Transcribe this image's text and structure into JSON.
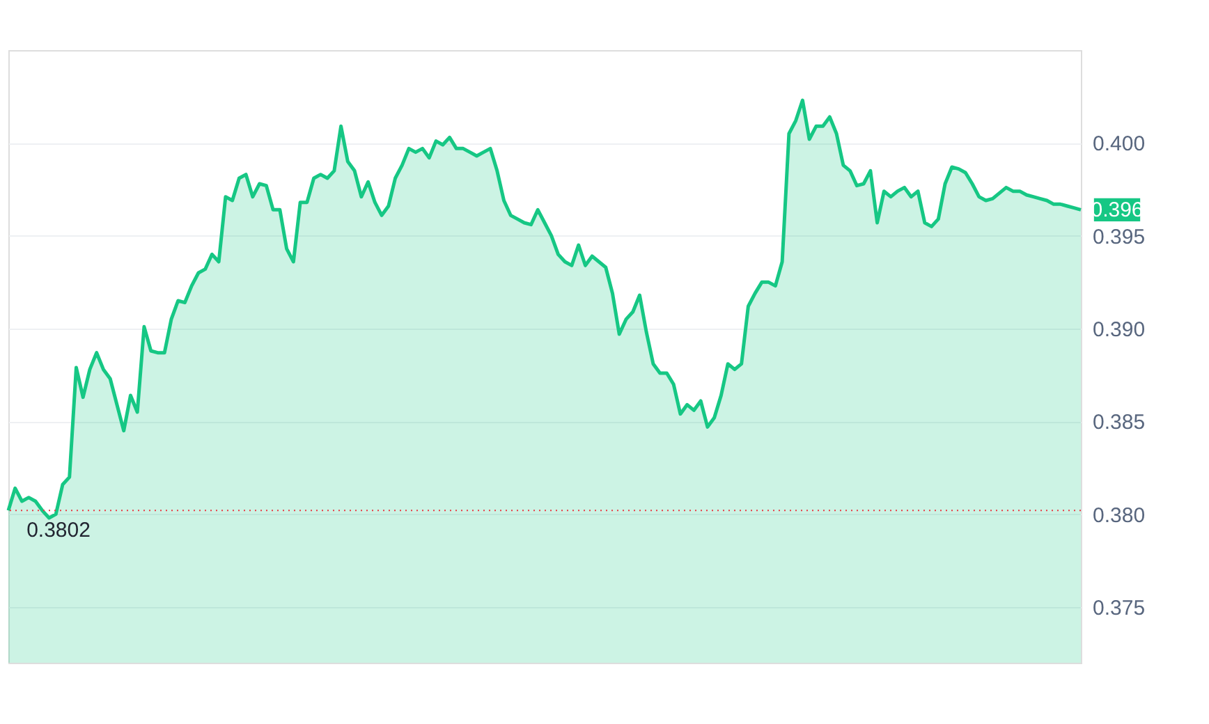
{
  "chart_data": {
    "type": "area",
    "categories": [
      null,
      null,
      null,
      null,
      null,
      null,
      null,
      null,
      null,
      null,
      null,
      null,
      null,
      null,
      null,
      null,
      null,
      null,
      null,
      null,
      null,
      null,
      null,
      null,
      null,
      null,
      null,
      null,
      null,
      null,
      null,
      null,
      null,
      null,
      null,
      null,
      null,
      null,
      null,
      null,
      null,
      null,
      null,
      null,
      null,
      null,
      null,
      null,
      null,
      null,
      null,
      null,
      null,
      null,
      null,
      null,
      null,
      null,
      null,
      null,
      null,
      null,
      null,
      null,
      null,
      null,
      null,
      null,
      null,
      null,
      null,
      null,
      null,
      null,
      null,
      null,
      null,
      null,
      null,
      null,
      null,
      null,
      null,
      null,
      null,
      null,
      null,
      null,
      null,
      null,
      null,
      null,
      null,
      null,
      null,
      null,
      null,
      null,
      null,
      null,
      null,
      null,
      null,
      null,
      null,
      null,
      null,
      null,
      null,
      null,
      null,
      null,
      null,
      null,
      null,
      null,
      null,
      null,
      null,
      null,
      null,
      null,
      null,
      null,
      null,
      null,
      null,
      null,
      null,
      null,
      null,
      null,
      null,
      null,
      null,
      null,
      null,
      null,
      null,
      null,
      null,
      null,
      null,
      null,
      null,
      null,
      null,
      null,
      null,
      null,
      null,
      null,
      null,
      null,
      null,
      null,
      null,
      null,
      null
    ],
    "series": [
      {
        "color": "#16c784",
        "values": [
          0.3802,
          0.3814,
          0.3807,
          0.3809,
          0.3807,
          0.3802,
          0.3798,
          0.38,
          0.3816,
          0.382,
          0.3879,
          0.3863,
          0.3878,
          0.3887,
          0.3878,
          0.3873,
          0.3859,
          0.3845,
          0.3864,
          0.3855,
          0.3901,
          0.3888,
          0.3887,
          0.3887,
          0.3905,
          0.3915,
          0.3914,
          0.3923,
          0.393,
          0.3932,
          0.394,
          0.3936,
          0.3971,
          0.3969,
          0.3981,
          0.3983,
          0.3971,
          0.3978,
          0.3977,
          0.3964,
          0.3964,
          0.3943,
          0.3936,
          0.3968,
          0.3968,
          0.3981,
          0.3983,
          0.3981,
          0.3985,
          0.4009,
          0.399,
          0.3985,
          0.3971,
          0.3979,
          0.3968,
          0.3961,
          0.3966,
          0.3981,
          0.3988,
          0.3997,
          0.3995,
          0.3997,
          0.3992,
          0.4001,
          0.3999,
          0.4003,
          0.3997,
          0.3997,
          0.3995,
          0.3993,
          0.3995,
          0.3997,
          0.3985,
          0.3969,
          0.3961,
          0.3959,
          0.3957,
          0.3956,
          0.3964,
          0.3957,
          0.395,
          0.394,
          0.3936,
          0.3934,
          0.3945,
          0.3934,
          0.3939,
          0.3936,
          0.3933,
          0.3919,
          0.3897,
          0.3905,
          0.3909,
          0.3918,
          0.3898,
          0.3881,
          0.3876,
          0.3876,
          0.387,
          0.3854,
          0.3859,
          0.3856,
          0.3861,
          0.3847,
          0.3852,
          0.3864,
          0.3881,
          0.3878,
          0.3881,
          0.3912,
          0.3919,
          0.3925,
          0.3925,
          0.3923,
          0.3936,
          0.4005,
          0.4012,
          0.4023,
          0.4002,
          0.4009,
          0.4009,
          0.4014,
          0.4005,
          0.3988,
          0.3985,
          0.3977,
          0.3978,
          0.3985,
          0.3957,
          0.3974,
          0.3971,
          0.3974,
          0.3976,
          0.3971,
          0.3974,
          0.3957,
          0.3955,
          0.3959,
          0.3978,
          0.3987,
          0.3986,
          0.3984,
          0.3978,
          0.3971,
          0.3969,
          0.397,
          0.3973,
          0.3976,
          0.3974,
          0.3974,
          0.3972,
          0.3971,
          0.397,
          0.3969,
          0.3967,
          0.3967,
          0.3966,
          0.3965,
          0.3964
        ]
      }
    ],
    "ylim": [
      0.372,
      0.405
    ],
    "yticks": [
      0.375,
      {
        "value": 0.38,
        "label": "0.380"
      },
      0.385,
      {
        "value": 0.39,
        "label": "0.390"
      },
      0.395,
      {
        "value": 0.4,
        "label": "0.400"
      }
    ],
    "grid": "y",
    "tick_labels": "y",
    "line_style": "solid",
    "marker": "none",
    "ref_lines": [
      {
        "axis": "y",
        "value": 0.3802,
        "label": "0.3802",
        "color": "#ea3943",
        "line_style": "dotted"
      }
    ],
    "annotations": [
      "0.396"
    ]
  }
}
